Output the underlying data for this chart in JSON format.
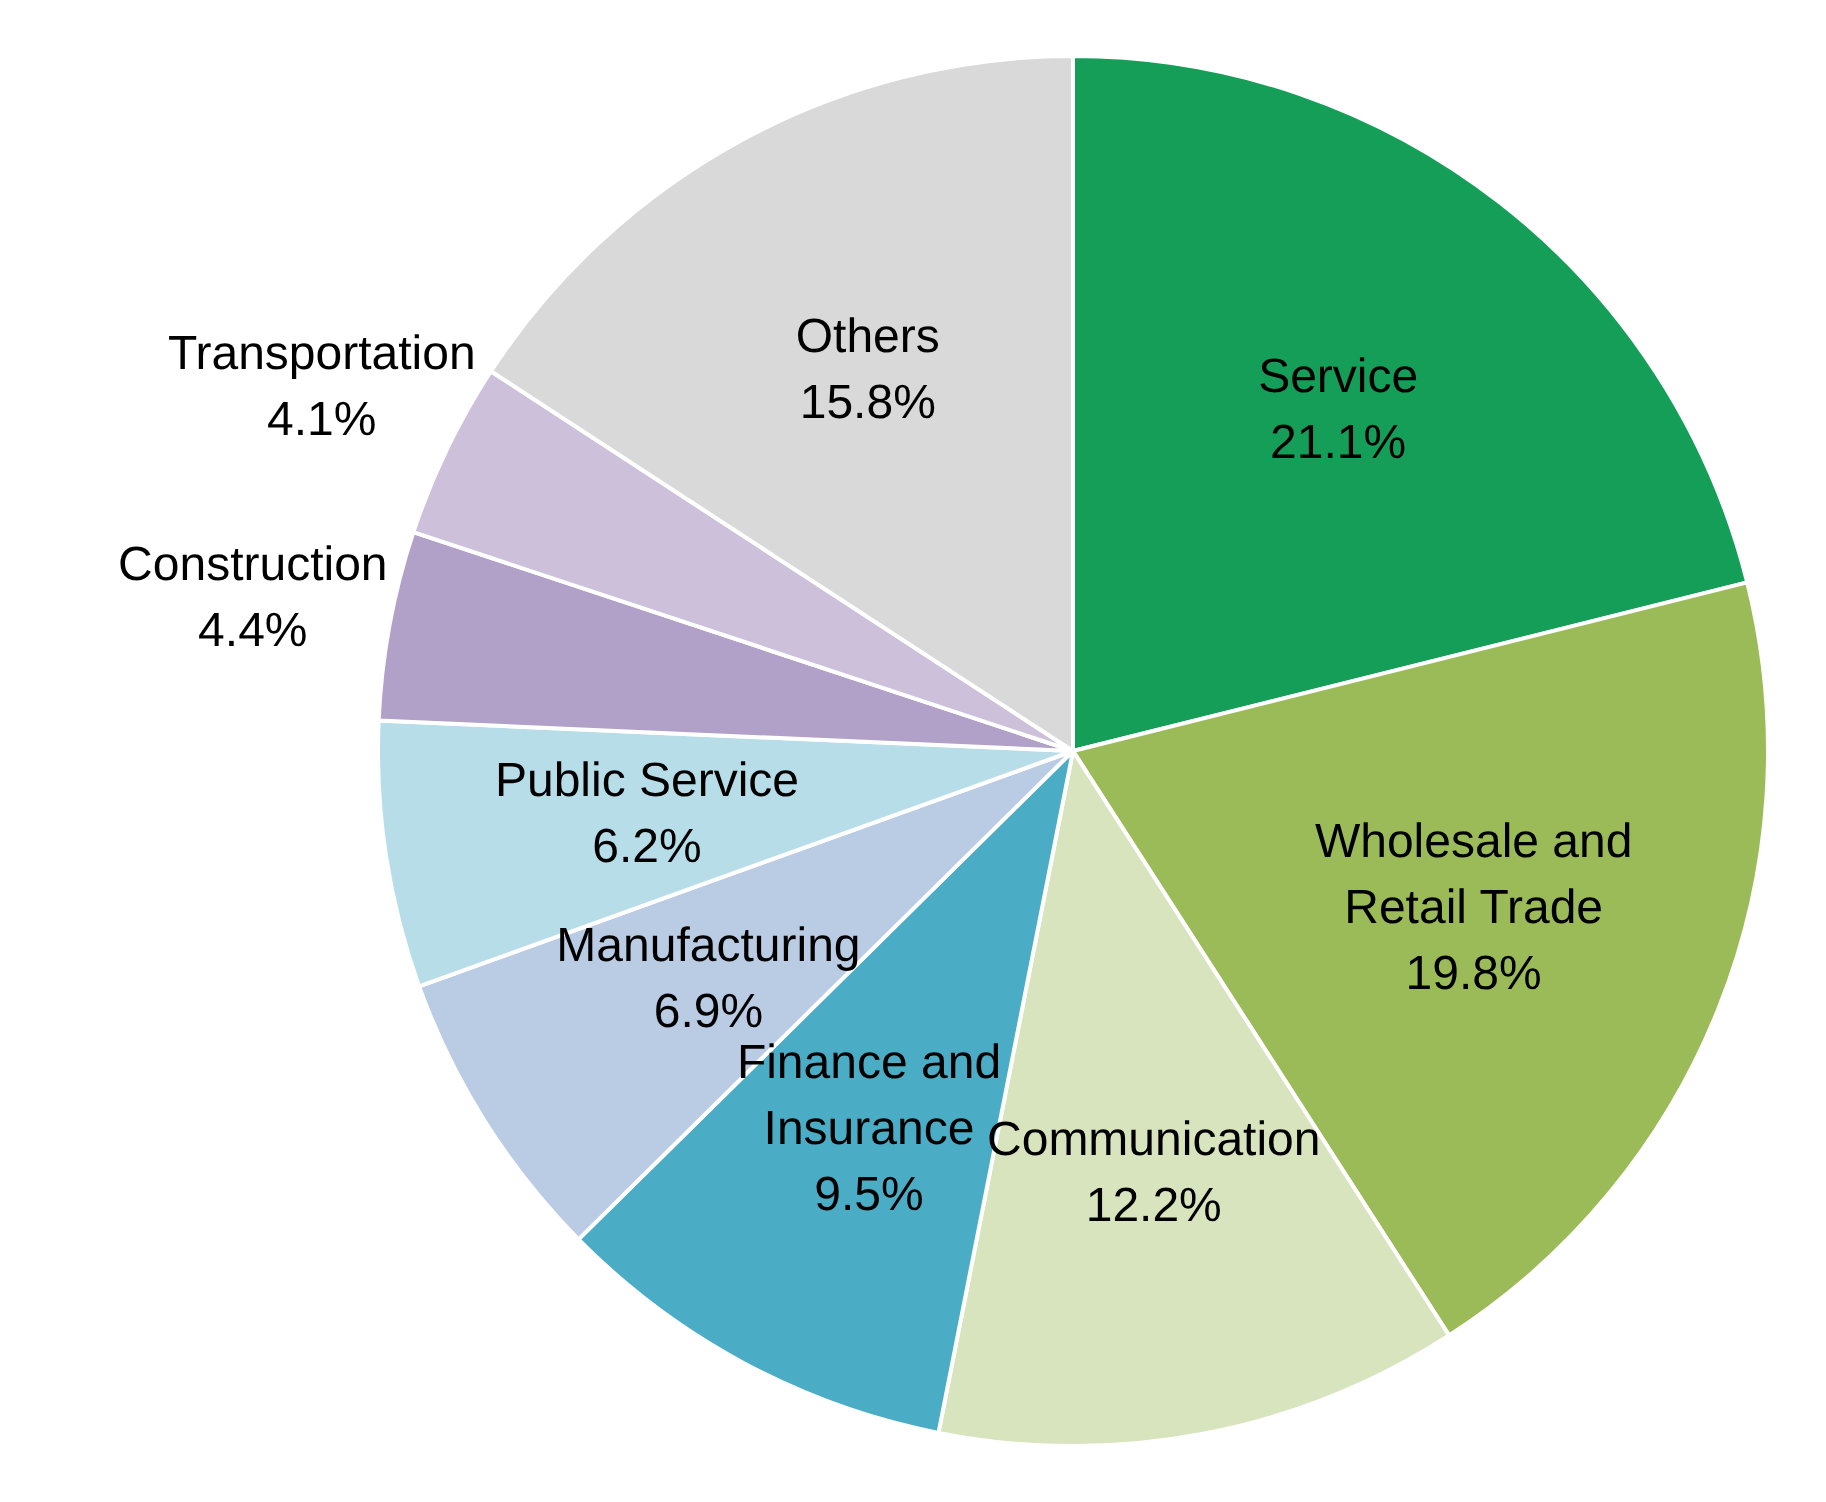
{
  "chart_data": {
    "type": "pie",
    "categories": [
      "Service",
      "Wholesale and Retail Trade",
      "Communication",
      "Finance and Insurance",
      "Manufacturing",
      "Public Service",
      "Construction",
      "Transportation",
      "Others"
    ],
    "values": [
      21.1,
      19.8,
      12.2,
      9.5,
      6.9,
      6.2,
      4.4,
      4.1,
      15.8
    ],
    "value_labels": [
      "21.1%",
      "19.8%",
      "12.2%",
      "9.5%",
      "6.9%",
      "6.2%",
      "4.4%",
      "4.1%",
      "15.8%"
    ],
    "colors": [
      "#149e58",
      "#9bbb59",
      "#d7e4bd",
      "#4bacc6",
      "#b9cce4",
      "#b7dee8",
      "#b1a0c7",
      "#ccc0da",
      "#d9d9d9"
    ]
  }
}
